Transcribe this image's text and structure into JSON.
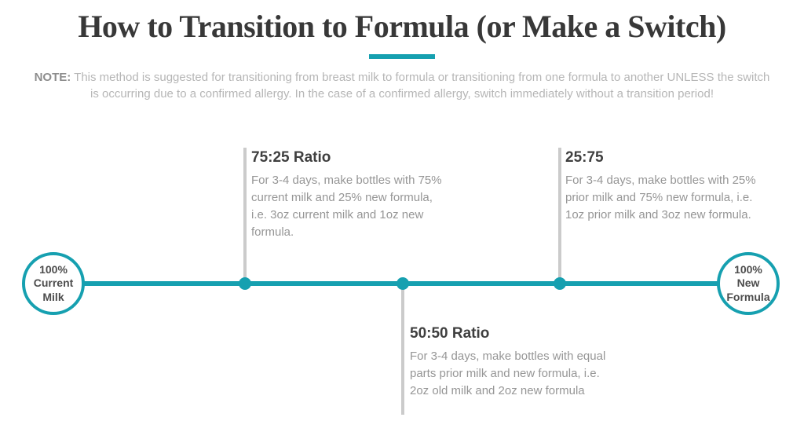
{
  "colors": {
    "teal": "#16a0b0",
    "connector": "#cbcbcb",
    "title": "#383838",
    "heading": "#3f3f3f",
    "body": "#969696",
    "note": "#b6b6b6",
    "note_label": "#8d8d8d",
    "node_text": "#4d4d4d"
  },
  "header": {
    "title": "How to Transition to Formula (or Make a Switch)",
    "note_label": "NOTE:",
    "note_text": "This method is suggested for transitioning from breast milk to formula or transitioning from one formula to another UNLESS the switch is occurring due to a confirmed allergy. In the case of a confirmed allergy, switch immediately without a transition period!"
  },
  "timeline": {
    "start_label": "100%\nCurrent\nMilk",
    "end_label": "100%\nNew\nFormula",
    "milestones": [
      {
        "title": "75:25 Ratio",
        "position": "above",
        "description": "For 3-4 days, make bottles with 75% current milk and 25% new formula, i.e. 3oz current milk and 1oz new formula."
      },
      {
        "title": "50:50 Ratio",
        "position": "below",
        "description": "For 3-4 days, make bottles with equal parts prior milk and new formula, i.e. 2oz old milk and 2oz new formula"
      },
      {
        "title": "25:75",
        "position": "above",
        "description": "For 3-4 days, make bottles with 25% prior milk and 75% new formula, i.e. 1oz prior milk and 3oz new formula."
      }
    ]
  }
}
